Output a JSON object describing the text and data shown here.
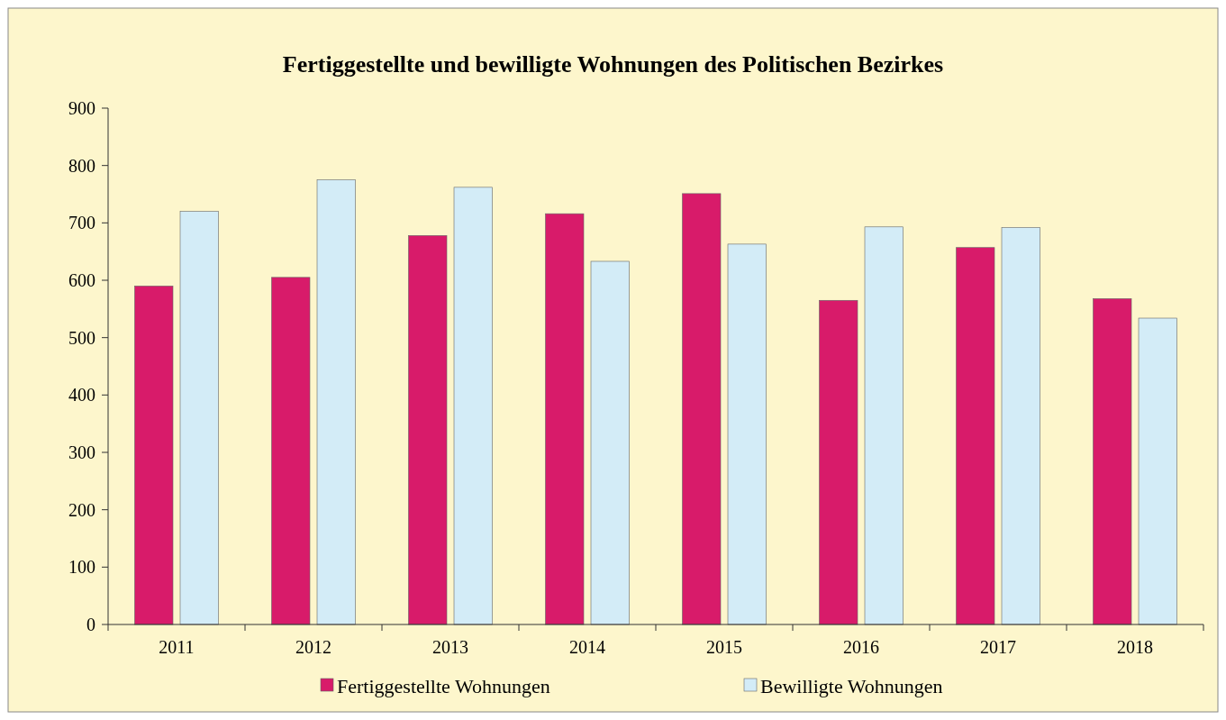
{
  "chart_data": {
    "type": "bar",
    "title": "Fertiggestellte und bewilligte Wohnungen des Politischen Bezirkes",
    "categories": [
      "2011",
      "2012",
      "2013",
      "2014",
      "2015",
      "2016",
      "2017",
      "2018"
    ],
    "series": [
      {
        "name": "Fertiggestellte Wohnungen",
        "color": "#d81b6a",
        "values": [
          590,
          605,
          678,
          716,
          751,
          565,
          657,
          568
        ]
      },
      {
        "name": "Bewilligte Wohnungen",
        "color": "#d3ecf7",
        "values": [
          720,
          775,
          762,
          633,
          663,
          693,
          692,
          534
        ]
      }
    ],
    "ylim": [
      0,
      900
    ],
    "yticks": [
      0,
      100,
      200,
      300,
      400,
      500,
      600,
      700,
      800,
      900
    ],
    "grid": false,
    "legend": "bottom"
  }
}
